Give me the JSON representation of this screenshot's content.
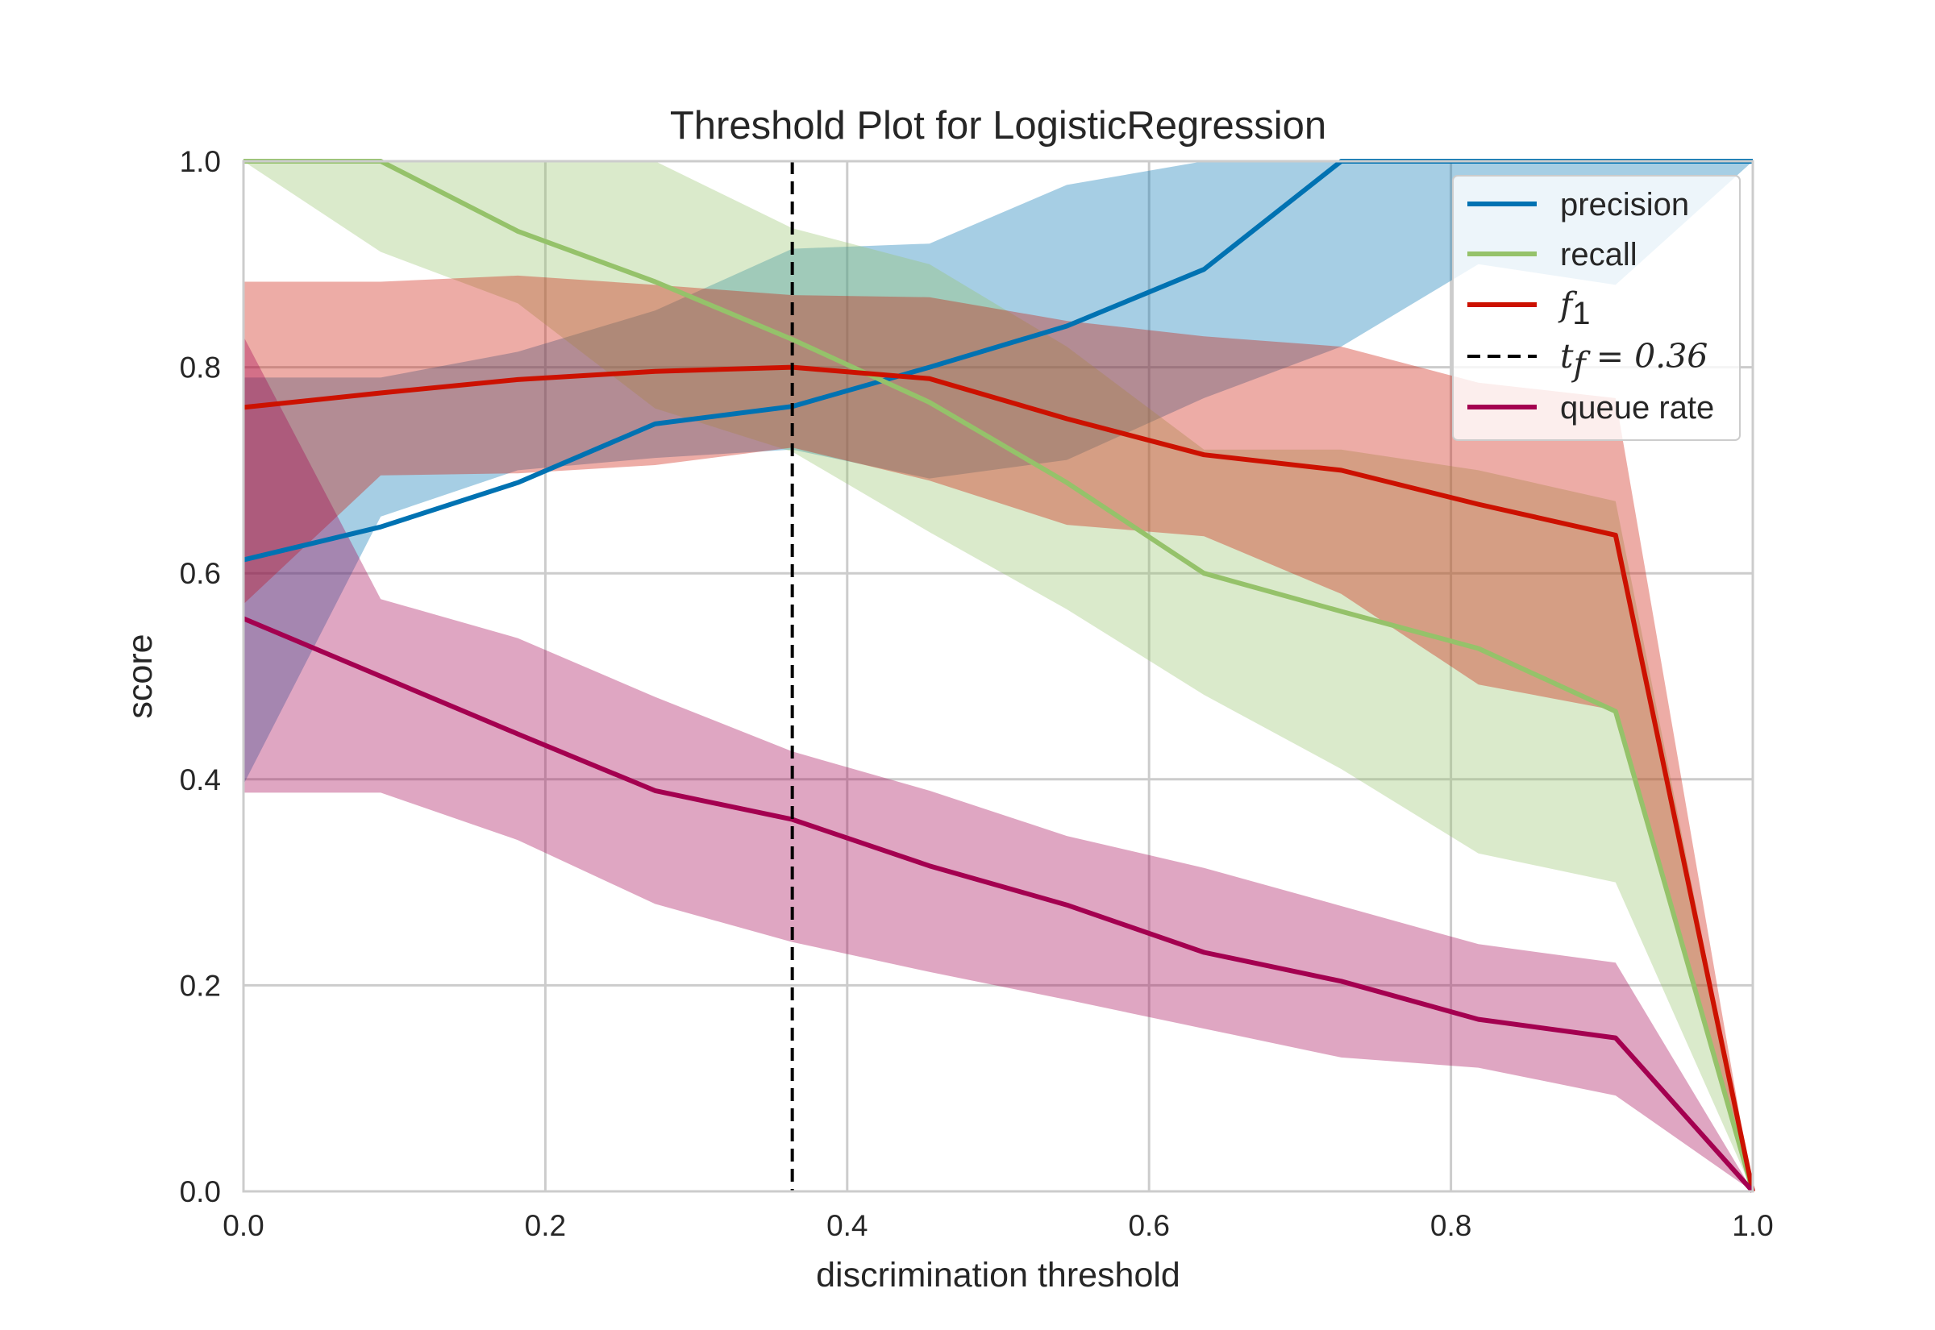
{
  "chart_data": {
    "type": "line",
    "title": "Threshold Plot for LogisticRegression",
    "xlabel": "discrimination threshold",
    "ylabel": "score",
    "xlim": [
      0,
      1
    ],
    "ylim": [
      0,
      1
    ],
    "grid": true,
    "legend_position": "top-right",
    "x_ticks": [
      "0.0",
      "0.2",
      "0.4",
      "0.6",
      "0.8",
      "1.0"
    ],
    "y_ticks": [
      "0.0",
      "0.2",
      "0.4",
      "0.6",
      "0.8",
      "1.0"
    ],
    "x": [
      0.0,
      0.0909,
      0.1818,
      0.2727,
      0.3636,
      0.4545,
      0.5455,
      0.6364,
      0.7273,
      0.8182,
      0.9091,
      1.0
    ],
    "series": [
      {
        "name": "precision",
        "color": "#0072B2",
        "values": [
          0.613,
          0.645,
          0.688,
          0.745,
          0.762,
          0.8,
          0.84,
          0.895,
          1.0,
          1.0,
          1.0,
          1.0
        ],
        "upper": [
          0.79,
          0.79,
          0.815,
          0.855,
          0.915,
          0.92,
          0.977,
          1.0,
          1.0,
          1.0,
          1.0,
          1.0
        ],
        "lower": [
          0.395,
          0.655,
          0.7,
          0.712,
          0.72,
          0.692,
          0.71,
          0.77,
          0.82,
          0.9,
          0.88,
          1.0
        ]
      },
      {
        "name": "recall",
        "color": "#95c26a",
        "values": [
          1.0,
          1.0,
          0.932,
          0.883,
          0.827,
          0.766,
          0.688,
          0.6,
          0.563,
          0.527,
          0.466,
          0.0
        ],
        "upper": [
          1.0,
          1.0,
          1.0,
          1.0,
          0.935,
          0.9,
          0.82,
          0.72,
          0.72,
          0.7,
          0.67,
          0.0
        ],
        "lower": [
          1.0,
          0.912,
          0.862,
          0.76,
          0.718,
          0.64,
          0.565,
          0.482,
          0.41,
          0.328,
          0.3,
          0.0
        ]
      },
      {
        "name": "f_1",
        "color": "#CC1100",
        "values": [
          0.761,
          0.775,
          0.788,
          0.796,
          0.8,
          0.789,
          0.75,
          0.715,
          0.7,
          0.667,
          0.637,
          0.0
        ],
        "upper": [
          0.883,
          0.883,
          0.889,
          0.88,
          0.87,
          0.868,
          0.845,
          0.83,
          0.82,
          0.785,
          0.77,
          0.0
        ],
        "lower": [
          0.57,
          0.695,
          0.697,
          0.705,
          0.722,
          0.69,
          0.647,
          0.636,
          0.58,
          0.492,
          0.467,
          0.0
        ]
      },
      {
        "name": "queue rate",
        "color": "#A40050",
        "values": [
          0.556,
          0.5,
          0.444,
          0.389,
          0.361,
          0.316,
          0.278,
          0.232,
          0.204,
          0.167,
          0.149,
          0.0
        ],
        "upper": [
          0.83,
          0.575,
          0.537,
          0.48,
          0.427,
          0.389,
          0.345,
          0.314,
          0.277,
          0.24,
          0.222,
          0.0
        ],
        "lower": [
          0.387,
          0.387,
          0.341,
          0.279,
          0.242,
          0.213,
          0.186,
          0.158,
          0.13,
          0.12,
          0.093,
          0.0
        ]
      }
    ],
    "threshold_line": {
      "x": 0.3636,
      "label": "t_f = 0.36",
      "color": "#000000"
    },
    "legend": [
      {
        "label": "precision",
        "color": "#0072B2",
        "style": "solid"
      },
      {
        "label": "recall",
        "color": "#95c26a",
        "style": "solid"
      },
      {
        "label": "f1",
        "color": "#CC1100",
        "style": "solid",
        "italic": true
      },
      {
        "label": "tf = 0.36",
        "color": "#000000",
        "style": "dashed",
        "italic": true
      },
      {
        "label": "queue rate",
        "color": "#A40050",
        "style": "solid"
      }
    ]
  }
}
